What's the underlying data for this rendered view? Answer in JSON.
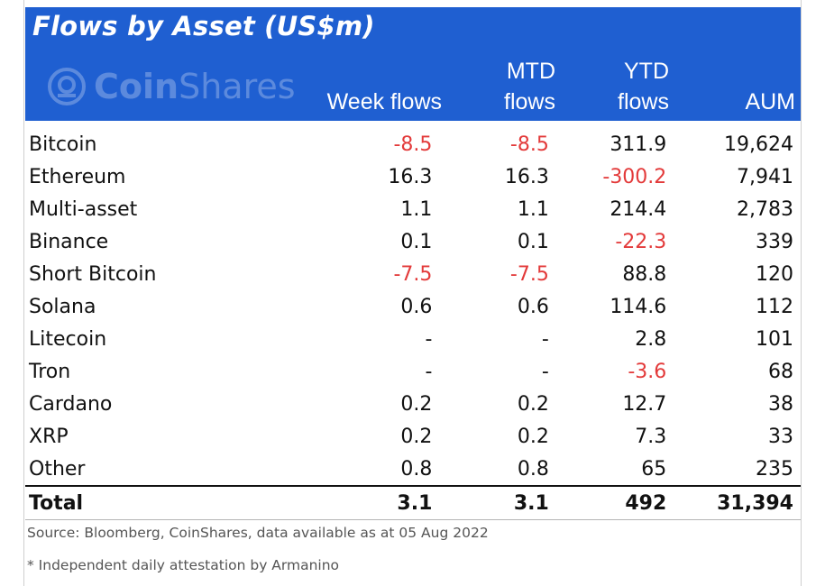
{
  "title": "Flows by Asset (US$m)",
  "logo": {
    "part1": "Coin",
    "part2": "Shares"
  },
  "columns": {
    "week": [
      "",
      "Week flows"
    ],
    "mtd": [
      "MTD",
      "flows"
    ],
    "ytd": [
      "YTD",
      "flows"
    ],
    "aum": [
      "",
      "AUM"
    ]
  },
  "rows": [
    {
      "name": "Bitcoin",
      "week": "-8.5",
      "mtd": "-8.5",
      "ytd": "311.9",
      "aum": "19,624"
    },
    {
      "name": "Ethereum",
      "week": "16.3",
      "mtd": "16.3",
      "ytd": "-300.2",
      "aum": "7,941"
    },
    {
      "name": "Multi-asset",
      "week": "1.1",
      "mtd": "1.1",
      "ytd": "214.4",
      "aum": "2,783"
    },
    {
      "name": "Binance",
      "week": "0.1",
      "mtd": "0.1",
      "ytd": "-22.3",
      "aum": "339"
    },
    {
      "name": "Short Bitcoin",
      "week": "-7.5",
      "mtd": "-7.5",
      "ytd": "88.8",
      "aum": "120"
    },
    {
      "name": "Solana",
      "week": "0.6",
      "mtd": "0.6",
      "ytd": "114.6",
      "aum": "112"
    },
    {
      "name": "Litecoin",
      "week": "-",
      "mtd": "-",
      "ytd": "2.8",
      "aum": "101"
    },
    {
      "name": "Tron",
      "week": "-",
      "mtd": "-",
      "ytd": "-3.6",
      "aum": "68"
    },
    {
      "name": "Cardano",
      "week": "0.2",
      "mtd": "0.2",
      "ytd": "12.7",
      "aum": "38"
    },
    {
      "name": "XRP",
      "week": "0.2",
      "mtd": "0.2",
      "ytd": "7.3",
      "aum": "33"
    },
    {
      "name": "Other",
      "week": "0.8",
      "mtd": "0.8",
      "ytd": "65",
      "aum": "235"
    }
  ],
  "total": {
    "name": "Total",
    "week": "3.1",
    "mtd": "3.1",
    "ytd": "492",
    "aum": "31,394"
  },
  "source": "Source: Bloomberg, CoinShares, data available as at 05 Aug 2022",
  "note": "* Independent daily attestation by Armanino",
  "colors": {
    "header_bg": "#1f5fd1",
    "negative": "#e33a3a"
  }
}
